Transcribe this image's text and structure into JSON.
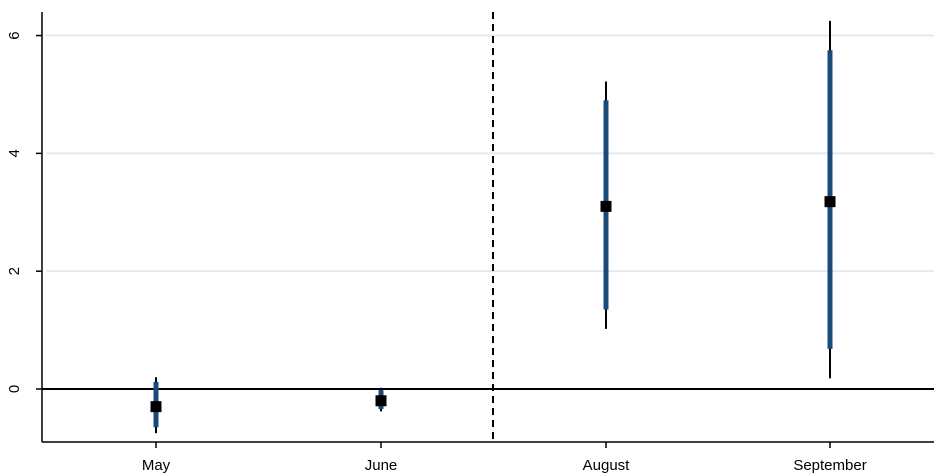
{
  "chart_data": {
    "type": "scatter",
    "categories": [
      "May",
      "June",
      "August",
      "September"
    ],
    "series": [
      {
        "estimate": [
          -0.3,
          -0.2,
          3.1,
          3.18
        ],
        "ci95": [
          [
            -0.75,
            0.2
          ],
          [
            -0.38,
            0.02
          ],
          [
            1.02,
            5.22
          ],
          [
            0.18,
            6.25
          ]
        ],
        "ci90": [
          [
            -0.65,
            0.12
          ],
          [
            -0.34,
            -0.02
          ],
          [
            1.35,
            4.9
          ],
          [
            0.68,
            5.75
          ]
        ]
      }
    ],
    "title": "",
    "xlabel": "",
    "ylabel": "",
    "yticks": [
      "0",
      "2",
      "4",
      "6"
    ],
    "ylim": [
      -0.9,
      6.4
    ],
    "reference_line_y": 0,
    "vertical_divider": "dashed line between June and August",
    "grid": "horizontal gridlines at y ticks",
    "colors": {
      "inner_ci": "#1a4a7a",
      "outer_ci": "#000000",
      "marker": "#000000",
      "gridline": "#e3e9ee"
    }
  }
}
